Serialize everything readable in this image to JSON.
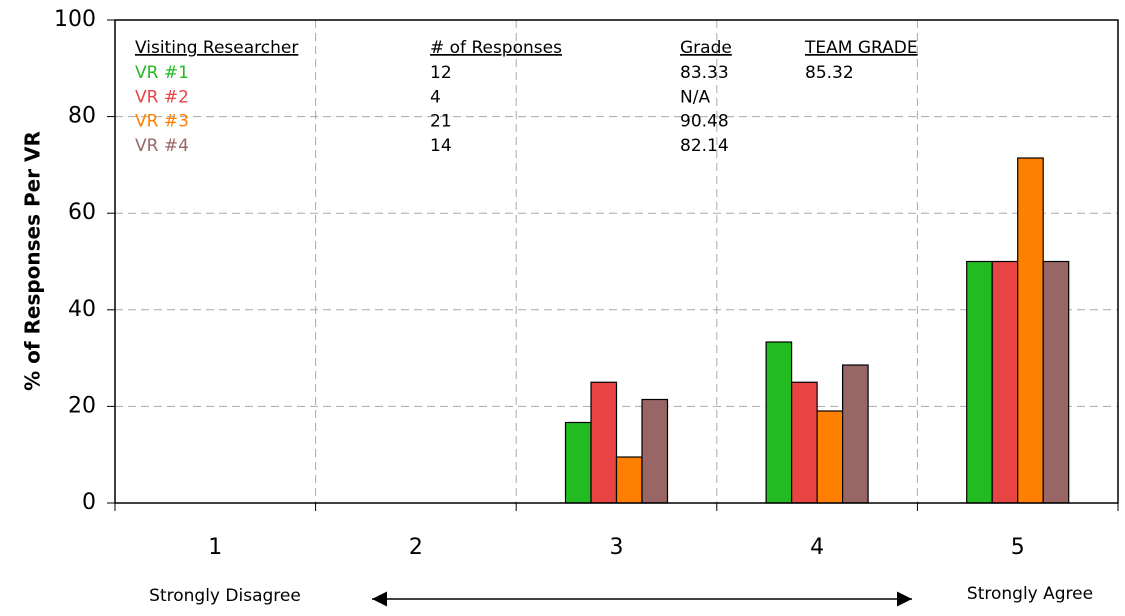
{
  "chart_data": {
    "type": "bar",
    "y_label": "% of Responses Per VR",
    "categories": [
      "1",
      "2",
      "3",
      "4",
      "5"
    ],
    "series": [
      {
        "name": "VR #1",
        "color": "#22bb22",
        "values": [
          0,
          0,
          16.67,
          33.33,
          50
        ]
      },
      {
        "name": "VR #2",
        "color": "#e84444",
        "values": [
          0,
          0,
          25,
          25,
          50
        ]
      },
      {
        "name": "VR #3",
        "color": "#ff8000",
        "values": [
          0,
          0,
          9.52,
          19.05,
          71.43
        ]
      },
      {
        "name": "VR #4",
        "color": "#996666",
        "values": [
          0,
          0,
          21.43,
          28.57,
          50
        ]
      }
    ],
    "ylim": [
      0,
      100
    ],
    "yticks": [
      0,
      20,
      40,
      60,
      80,
      100
    ],
    "grid": true,
    "annotations": [
      "Strongly Disagree",
      "Strongly Agree"
    ],
    "table": {
      "headers": [
        "Visiting Researcher",
        "# of Responses",
        "Grade",
        "TEAM GRADE"
      ],
      "responses": [
        12,
        4,
        21,
        14
      ],
      "grades": [
        83.33,
        "N/A",
        90.48,
        82.14
      ],
      "team_grade": 85.32
    }
  }
}
